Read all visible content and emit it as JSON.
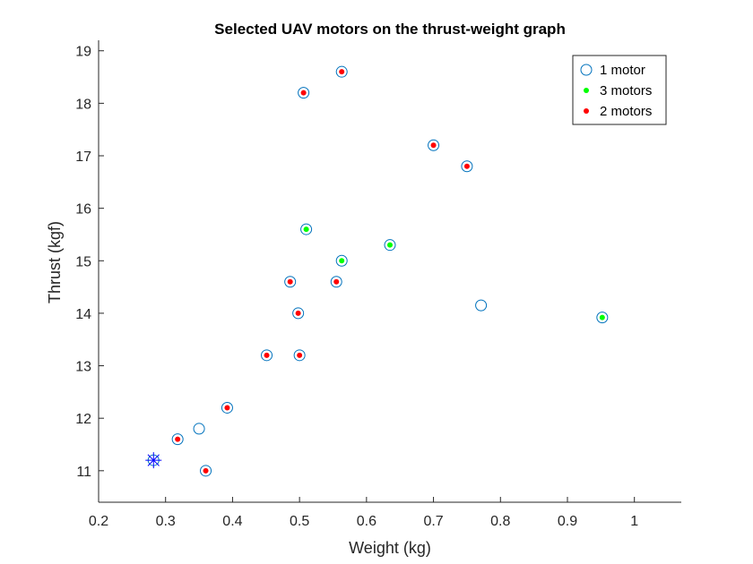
{
  "chart_data": {
    "type": "scatter",
    "title": "Selected UAV motors on the thrust-weight graph",
    "xlabel": "Weight (kg)",
    "ylabel": "Thrust (kgf)",
    "xlim": [
      0.2,
      1.07
    ],
    "ylim": [
      10.4,
      19.2
    ],
    "xticks": [
      0.2,
      0.3,
      0.4,
      0.5,
      0.6,
      0.7,
      0.8,
      0.9,
      1
    ],
    "xtick_labels": [
      "0.2",
      "0.3",
      "0.4",
      "0.5",
      "0.6",
      "0.7",
      "0.8",
      "0.9",
      "1"
    ],
    "yticks": [
      11,
      12,
      13,
      14,
      15,
      16,
      17,
      18,
      19
    ],
    "ytick_labels": [
      "11",
      "12",
      "13",
      "14",
      "15",
      "16",
      "17",
      "18",
      "19"
    ],
    "grid": false,
    "legend_position": "top-right",
    "series": [
      {
        "name": "1 motor",
        "marker": "open-circle",
        "color": "#0072BD",
        "points": [
          [
            0.282,
            11.2
          ],
          [
            0.318,
            11.6
          ],
          [
            0.35,
            11.8
          ],
          [
            0.36,
            11.0
          ],
          [
            0.392,
            12.2
          ],
          [
            0.451,
            13.2
          ],
          [
            0.486,
            14.6
          ],
          [
            0.498,
            14.0
          ],
          [
            0.5,
            13.2
          ],
          [
            0.506,
            18.2
          ],
          [
            0.51,
            15.6
          ],
          [
            0.555,
            14.6
          ],
          [
            0.563,
            15.0
          ],
          [
            0.563,
            18.6
          ],
          [
            0.635,
            15.3
          ],
          [
            0.7,
            17.2
          ],
          [
            0.75,
            16.8
          ],
          [
            0.771,
            14.15
          ],
          [
            0.952,
            13.92
          ]
        ]
      },
      {
        "name": "3 motors",
        "marker": "dot",
        "color": "#00FF00",
        "points": [
          [
            0.51,
            15.6
          ],
          [
            0.563,
            15.0
          ],
          [
            0.635,
            15.3
          ],
          [
            0.952,
            13.92
          ]
        ]
      },
      {
        "name": "2 motors",
        "marker": "dot",
        "color": "#FF0000",
        "points": [
          [
            0.318,
            11.6
          ],
          [
            0.36,
            11.0
          ],
          [
            0.392,
            12.2
          ],
          [
            0.451,
            13.2
          ],
          [
            0.486,
            14.6
          ],
          [
            0.498,
            14.0
          ],
          [
            0.5,
            13.2
          ],
          [
            0.506,
            18.2
          ],
          [
            0.555,
            14.6
          ],
          [
            0.563,
            18.6
          ],
          [
            0.7,
            17.2
          ],
          [
            0.75,
            16.8
          ]
        ]
      }
    ],
    "highlight": {
      "marker": "asterisk",
      "color": "#0000FF",
      "point": [
        0.282,
        11.2
      ]
    }
  }
}
